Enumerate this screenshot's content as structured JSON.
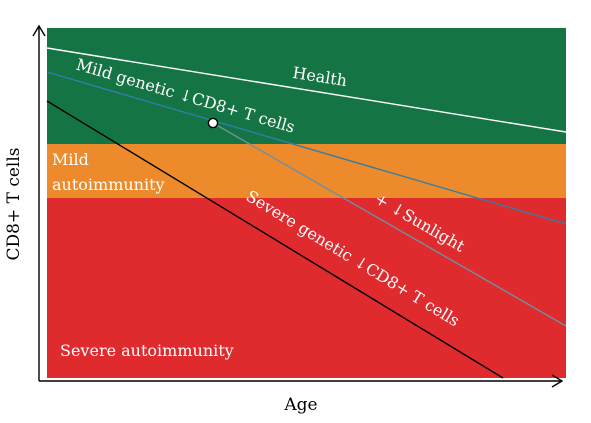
{
  "colors": {
    "health": "#157443",
    "mild": "#EC8A2C",
    "severe": "#DF2A2E",
    "axis": "#000000",
    "health_line": "#ffffff",
    "mild_genetic_line": "#2F7FA8",
    "sunlight_line": "#6F8FA3",
    "severe_genetic_line": "#000000",
    "label_light": "#ffffff",
    "label_dark": "#000000"
  },
  "axes": {
    "x_label": "Age",
    "y_label": "CD8+ T cells"
  },
  "regions": {
    "mild_label_line1": "Mild",
    "mild_label_line2": "autoimmunity",
    "severe_label": "Severe autoimmunity"
  },
  "curves": {
    "health": "Health",
    "mild_genetic": "Mild genetic ↓CD8+ T cells",
    "sunlight": "+ ↓Sunlight",
    "severe_genetic": "Severe genetic ↓CD8+ T cells"
  }
}
